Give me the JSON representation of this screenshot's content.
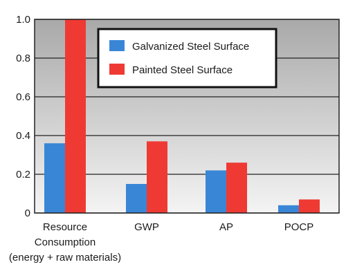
{
  "chart_data": {
    "type": "bar",
    "title": "",
    "xlabel": "",
    "ylabel": "",
    "ylim": [
      0,
      1.0
    ],
    "yticks": [
      0,
      0.2,
      0.4,
      0.6,
      0.8,
      1.0
    ],
    "ytick_labels": [
      "0",
      "0.2",
      "0.4",
      "0.6",
      "0.8",
      "1.0"
    ],
    "grid": "horizontal",
    "background": "gradient-gray",
    "legend_position": "top-right",
    "categories": [
      [
        "Resource",
        "Consumption",
        "(energy + raw materials)"
      ],
      [
        "GWP"
      ],
      [
        "AP"
      ],
      [
        "POCP"
      ]
    ],
    "series": [
      {
        "name": "Galvanized Steel Surface",
        "color": "#3a86d6",
        "values": [
          0.36,
          0.15,
          0.22,
          0.04
        ]
      },
      {
        "name": "Painted Steel Surface",
        "color": "#ee3a33",
        "values": [
          1.0,
          0.37,
          0.26,
          0.07
        ]
      }
    ]
  }
}
